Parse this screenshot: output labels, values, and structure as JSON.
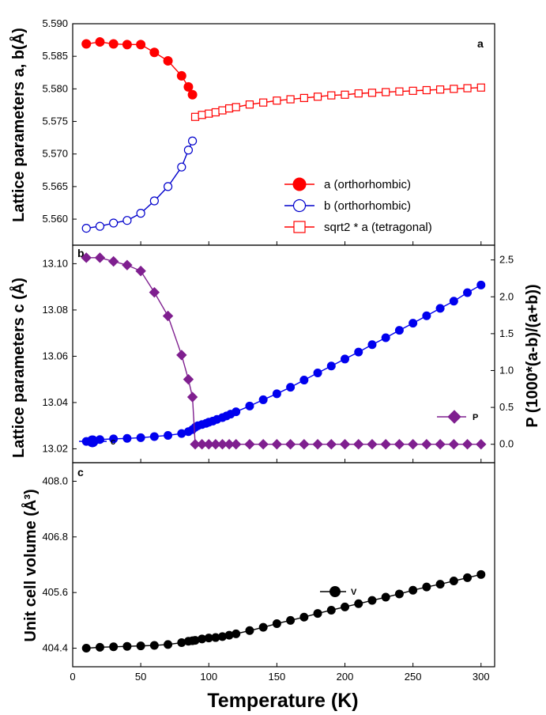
{
  "chart_data": [
    {
      "id": "a",
      "panel_letter": "a",
      "type": "line",
      "ylabel": "Lattice parameters a, b(Å)",
      "xlim": [
        0,
        310
      ],
      "ylim": [
        5.556,
        5.59
      ],
      "yticks": [
        "5.560",
        "5.565",
        "5.570",
        "5.575",
        "5.580",
        "5.585",
        "5.590"
      ],
      "legend_placement": "lower-right",
      "series": [
        {
          "name": "a (orthorhombic)",
          "color": "#ff0000",
          "marker": "filled-circle",
          "x": [
            10,
            20,
            30,
            40,
            50,
            60,
            70,
            80,
            85,
            88
          ],
          "y": [
            5.5869,
            5.5872,
            5.5869,
            5.5868,
            5.5868,
            5.5856,
            5.5843,
            5.582,
            5.5803,
            5.5791
          ]
        },
        {
          "name": "b (orthorhombic)",
          "color": "#0000cc",
          "marker": "open-circle",
          "x": [
            10,
            20,
            30,
            40,
            50,
            60,
            70,
            80,
            85,
            88
          ],
          "y": [
            5.5586,
            5.5589,
            5.5594,
            5.5598,
            5.5609,
            5.5628,
            5.565,
            5.568,
            5.5706,
            5.572
          ]
        },
        {
          "name": "sqrt2 * a (tetragonal)",
          "color": "#ff0000",
          "marker": "open-square",
          "x": [
            90,
            95,
            100,
            105,
            110,
            115,
            120,
            130,
            140,
            150,
            160,
            170,
            180,
            190,
            200,
            210,
            220,
            230,
            240,
            250,
            260,
            270,
            280,
            290,
            300
          ],
          "y": [
            5.5757,
            5.576,
            5.5762,
            5.5764,
            5.5767,
            5.577,
            5.5772,
            5.5776,
            5.5779,
            5.5782,
            5.5784,
            5.5786,
            5.5788,
            5.579,
            5.5791,
            5.5793,
            5.5794,
            5.5795,
            5.5796,
            5.5797,
            5.5798,
            5.5799,
            5.58,
            5.5801,
            5.5802
          ]
        }
      ]
    },
    {
      "id": "b",
      "panel_letter": "b",
      "type": "line",
      "ylabel": "Lattice parameters c (Å)",
      "ylabel_right": "P (1000*(a-b)/(a+b))",
      "xlim": [
        0,
        310
      ],
      "ylim": [
        13.014,
        13.108
      ],
      "yticks": [
        "13.02",
        "13.04",
        "13.06",
        "13.08",
        "13.10"
      ],
      "ylim_right": [
        -0.25,
        2.7
      ],
      "yticks_right": [
        "0.0",
        "0.5",
        "1.0",
        "1.5",
        "2.0",
        "2.5"
      ],
      "series": [
        {
          "name": "c",
          "axis": "left",
          "color": "#0000ee",
          "marker": "filled-circle",
          "x": [
            10,
            20,
            30,
            40,
            50,
            60,
            70,
            80,
            85,
            88,
            90,
            92,
            95,
            98,
            100,
            103,
            106,
            110,
            113,
            116,
            120,
            130,
            140,
            150,
            160,
            170,
            180,
            190,
            200,
            210,
            220,
            230,
            240,
            250,
            260,
            270,
            280,
            290,
            300
          ],
          "y": [
            13.0232,
            13.024,
            13.0243,
            13.0245,
            13.0248,
            13.0253,
            13.0258,
            13.0266,
            13.0274,
            13.0283,
            13.0293,
            13.03,
            13.0305,
            13.031,
            13.0315,
            13.032,
            13.0327,
            13.0335,
            13.0342,
            13.035,
            13.036,
            13.0385,
            13.0412,
            13.0438,
            13.0466,
            13.0497,
            13.0528,
            13.0558,
            13.0588,
            13.0618,
            13.065,
            13.068,
            13.0712,
            13.0743,
            13.0775,
            13.0807,
            13.0838,
            13.0875,
            13.0908
          ]
        },
        {
          "name": "P",
          "axis": "right",
          "color": "#7f1f8f",
          "marker": "filled-diamond",
          "x": [
            10,
            20,
            30,
            40,
            50,
            60,
            70,
            80,
            85,
            88,
            90,
            95,
            100,
            105,
            110,
            115,
            120,
            130,
            140,
            150,
            160,
            170,
            180,
            190,
            200,
            210,
            220,
            230,
            240,
            250,
            260,
            270,
            280,
            290,
            300
          ],
          "y": [
            2.53,
            2.53,
            2.48,
            2.43,
            2.35,
            2.06,
            1.74,
            1.21,
            0.88,
            0.64,
            0,
            0,
            0,
            0,
            0,
            0,
            0,
            0,
            0,
            0,
            0,
            0,
            0,
            0,
            0,
            0,
            0,
            0,
            0,
            0,
            0,
            0,
            0,
            0,
            0
          ]
        }
      ]
    },
    {
      "id": "c",
      "panel_letter": "c",
      "type": "line",
      "ylabel": "Unit cell volume (Å³)",
      "xlabel": "Temperature (K)",
      "xlim": [
        0,
        310
      ],
      "xticks": [
        "0",
        "50",
        "100",
        "150",
        "200",
        "250",
        "300"
      ],
      "ylim": [
        404.0,
        408.4
      ],
      "yticks": [
        "404.4",
        "405.6",
        "406.8",
        "408.0"
      ],
      "series": [
        {
          "name": "V",
          "color": "#000000",
          "marker": "filled-circle",
          "x": [
            10,
            20,
            30,
            40,
            50,
            60,
            70,
            80,
            85,
            88,
            90,
            95,
            100,
            105,
            110,
            115,
            120,
            130,
            140,
            150,
            160,
            170,
            180,
            190,
            200,
            210,
            220,
            230,
            240,
            250,
            260,
            270,
            280,
            290,
            300
          ],
          "y": [
            404.4,
            404.42,
            404.43,
            404.44,
            404.45,
            404.46,
            404.48,
            404.52,
            404.55,
            404.56,
            404.57,
            404.6,
            404.62,
            404.63,
            404.65,
            404.68,
            404.71,
            404.78,
            404.85,
            404.93,
            405.0,
            405.07,
            405.15,
            405.22,
            405.29,
            405.36,
            405.43,
            405.5,
            405.57,
            405.65,
            405.72,
            405.78,
            405.85,
            405.92,
            405.99
          ]
        }
      ]
    }
  ]
}
